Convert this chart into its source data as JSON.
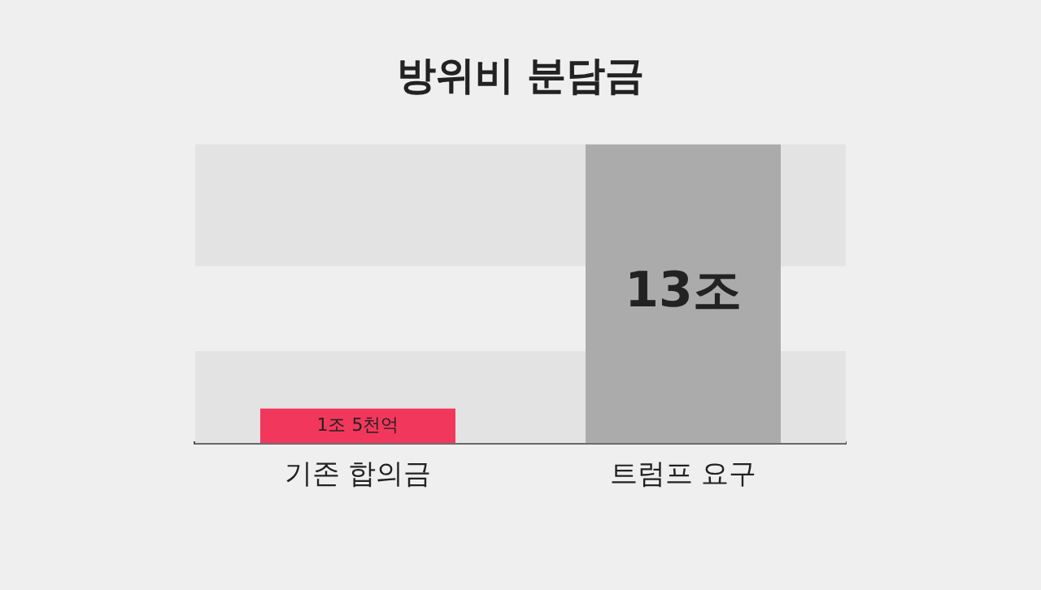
{
  "chart_data": {
    "type": "bar",
    "title": "방위비 분담금",
    "categories": [
      "기존 합의금",
      "트럼프 요구"
    ],
    "values": [
      1.5,
      13
    ],
    "colors": [
      "#f2375c",
      "#ababab"
    ],
    "value_labels": [
      "1조 5천억",
      "13조"
    ],
    "bands": [
      {
        "axis": "y",
        "from": 7.7,
        "to": 13,
        "color": "#e3e3e3"
      },
      {
        "axis": "y",
        "from": 0,
        "to": 4,
        "color": "#e3e3e3"
      }
    ],
    "grid": false,
    "legend": false
  }
}
